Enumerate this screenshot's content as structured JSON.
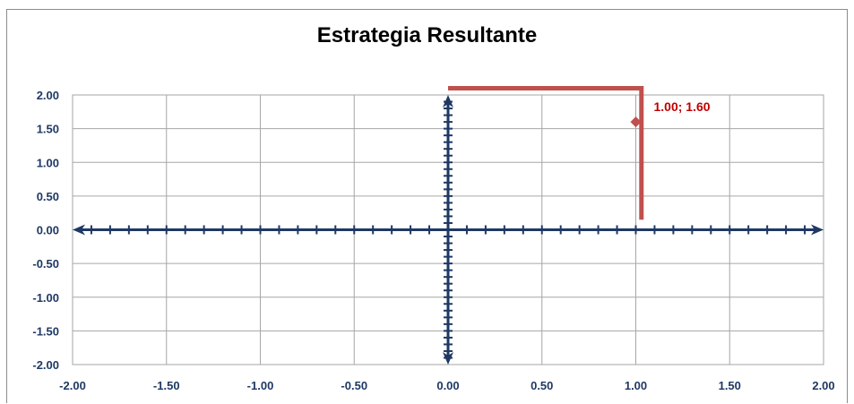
{
  "chart_data": {
    "type": "line",
    "title": "Estrategia Resultante",
    "xlabel": "",
    "ylabel": "",
    "xlim": [
      -2,
      2
    ],
    "ylim": [
      -2,
      2
    ],
    "grid": true,
    "x_ticks": [
      "-2.00",
      "-1.50",
      "-1.00",
      "-0.50",
      "0.00",
      "0.50",
      "1.00",
      "1.50",
      "2.00"
    ],
    "y_ticks": [
      "2.00",
      "1.50",
      "1.00",
      "0.50",
      "0.00",
      "-0.50",
      "-1.00",
      "-1.50",
      "-2.00"
    ],
    "series": [
      {
        "kind": "line",
        "color": "#c0504d",
        "x": [
          0.0,
          1.03,
          1.03
        ],
        "y": [
          2.1,
          2.1,
          0.15
        ]
      },
      {
        "kind": "point",
        "color": "#c0504d",
        "x": [
          1.0
        ],
        "y": [
          1.6
        ]
      }
    ],
    "annotations": [
      {
        "text": "1.00; 1.60",
        "x": 1.0,
        "y": 1.6,
        "color": "#c00000"
      }
    ],
    "axis_color": "#1f3864",
    "grid_color": "#a6a6a6"
  }
}
